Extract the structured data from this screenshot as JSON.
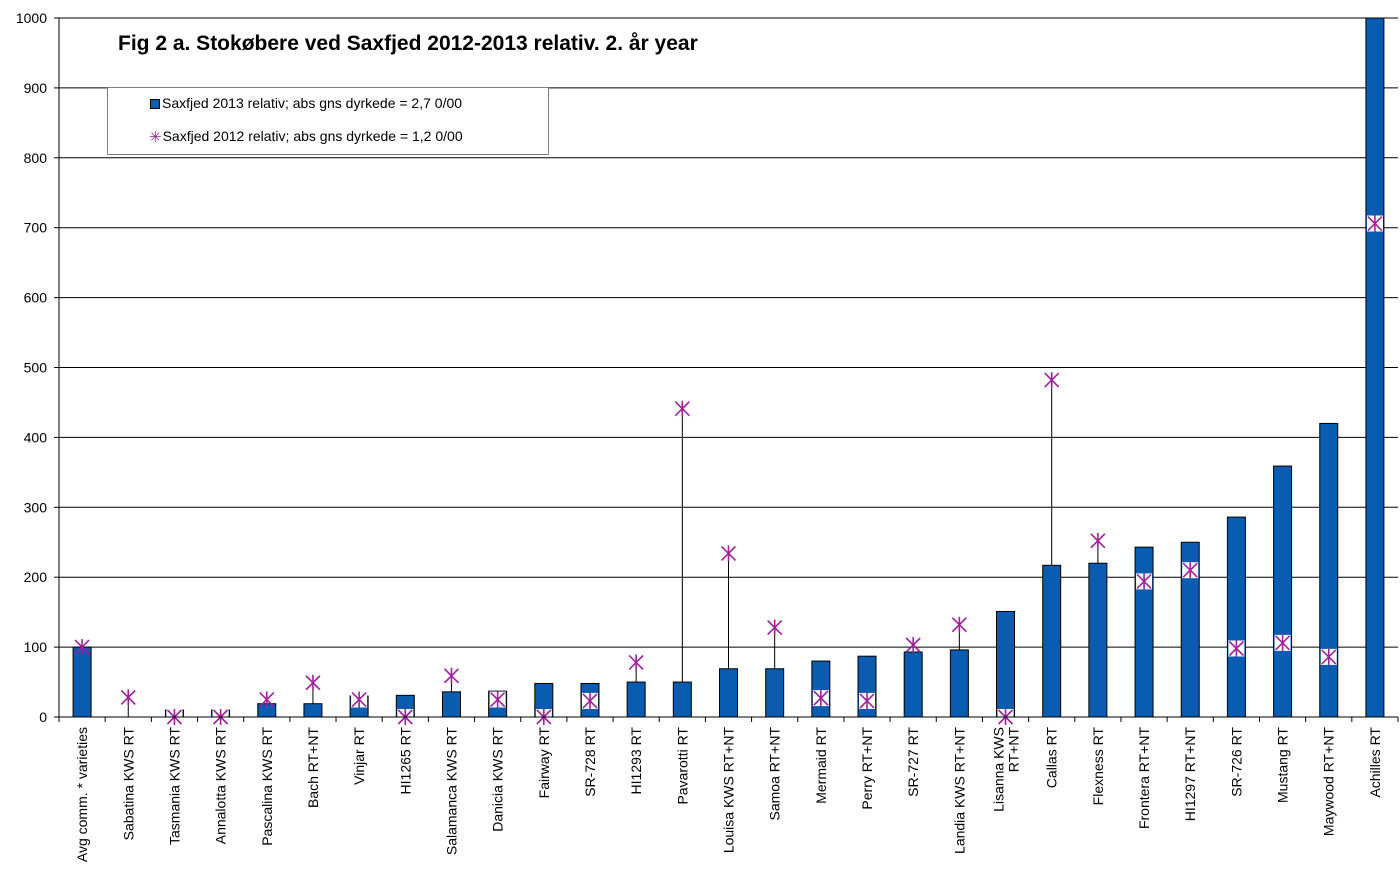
{
  "chart_data": {
    "type": "bar",
    "title": "Fig 2 a. Stokøbere ved Saxfjed 2012-2013 relativ. 2. år year",
    "xlabel": "",
    "ylabel": "",
    "ylim": [
      0,
      1000
    ],
    "yticks": [
      0,
      100,
      200,
      300,
      400,
      500,
      600,
      700,
      800,
      900,
      1000
    ],
    "grid": true,
    "legend_position": "top-left",
    "categories": [
      "Avg comm. * varieties",
      "Sabatina KWS  RT",
      "Tasmania KWS  RT",
      "Annalotta KWS  RT",
      "Pascalina KWS  RT",
      "Bach  RT+NT",
      "Vinjar  RT",
      "HI1265  RT",
      "Salamanca KWS  RT",
      "Danicia KWS  RT",
      "Fairway  RT",
      "SR-728  RT",
      "HI1293  RT",
      "Pavarotti  RT",
      "Louisa KWS  RT+NT",
      "Samoa  RT+NT",
      "Mermaid  RT",
      "Perry  RT+NT",
      "SR-727  RT",
      "Landia KWS  RT+NT",
      "Lisanna KWS RT+NT",
      "Callas  RT",
      "Flexness  RT",
      "Frontera  RT+NT",
      "HI1297  RT+NT",
      "SR-726  RT",
      "Mustang  RT",
      "Maywood  RT+NT",
      "Achilles  RT"
    ],
    "series": [
      {
        "name": "Saxfjed 2013 relativ; abs gns dyrkede = 2,7 0/00",
        "kind": "bar",
        "color": "#0a5cb0",
        "values": [
          100,
          0,
          10,
          10,
          19,
          19,
          30,
          31,
          36,
          37,
          48,
          48,
          50,
          50,
          69,
          69,
          80,
          87,
          93,
          96,
          151,
          217,
          220,
          243,
          250,
          286,
          359,
          420,
          1000
        ]
      },
      {
        "name": "Saxfjed 2012 relativ; abs gns dyrkede = 1,2 0/00",
        "kind": "marker",
        "color": "#a0209a",
        "values": [
          100,
          28,
          0,
          0,
          25,
          49,
          25,
          0,
          59,
          25,
          0,
          23,
          78,
          441,
          234,
          128,
          27,
          23,
          103,
          132,
          0,
          482,
          252,
          194,
          210,
          98,
          106,
          86,
          706
        ]
      }
    ]
  }
}
